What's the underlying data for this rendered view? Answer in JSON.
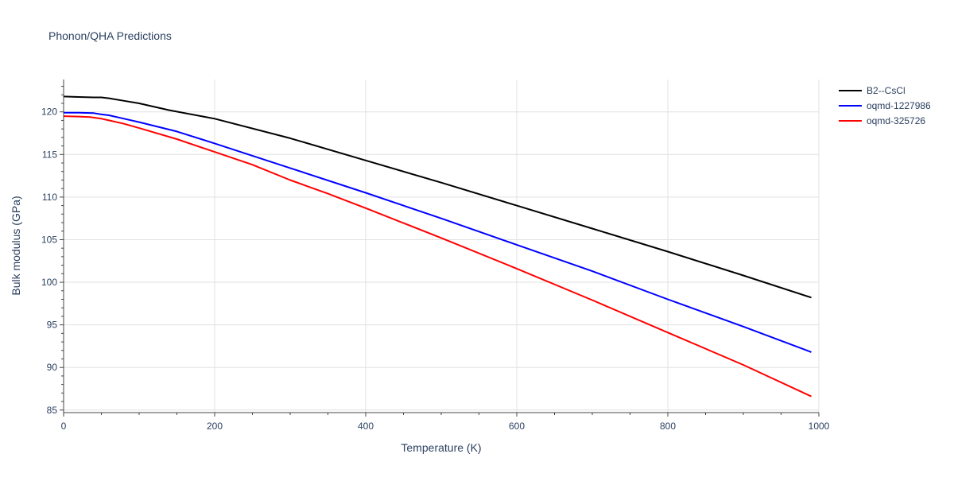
{
  "chart_data": {
    "type": "line",
    "title": "Phonon/QHA Predictions",
    "xlabel": "Temperature (K)",
    "ylabel": "Bulk modulus (GPa)",
    "xlim": [
      0,
      1000
    ],
    "ylim": [
      84.7,
      123.8
    ],
    "x_ticks": [
      0,
      200,
      400,
      600,
      800,
      1000
    ],
    "y_ticks": [
      85,
      90,
      95,
      100,
      105,
      110,
      115,
      120
    ],
    "x_minor_step": 50,
    "y_minor_step": 1,
    "grid": true,
    "legend_position": "top-right",
    "series": [
      {
        "name": "B2--CsCl",
        "color": "#000000",
        "x": [
          0,
          20,
          40,
          50,
          60,
          80,
          100,
          140,
          200,
          300,
          400,
          500,
          600,
          700,
          800,
          900,
          990
        ],
        "y": [
          121.8,
          121.75,
          121.7,
          121.7,
          121.6,
          121.3,
          121.0,
          120.2,
          119.2,
          116.9,
          114.3,
          111.7,
          109.0,
          106.3,
          103.6,
          100.8,
          98.2
        ]
      },
      {
        "name": "oqmd-1227986",
        "color": "#0000ff",
        "x": [
          0,
          20,
          40,
          50,
          60,
          80,
          100,
          150,
          200,
          300,
          400,
          500,
          600,
          700,
          800,
          900,
          990
        ],
        "y": [
          119.9,
          119.9,
          119.85,
          119.7,
          119.6,
          119.2,
          118.8,
          117.7,
          116.3,
          113.4,
          110.5,
          107.5,
          104.4,
          101.3,
          98.0,
          94.8,
          91.8
        ]
      },
      {
        "name": "oqmd-325726",
        "color": "#ff0000",
        "x": [
          0,
          20,
          35,
          50,
          60,
          80,
          100,
          150,
          200,
          250,
          300,
          350,
          400,
          500,
          600,
          700,
          800,
          900,
          990
        ],
        "y": [
          119.5,
          119.45,
          119.4,
          119.2,
          119.0,
          118.6,
          118.1,
          116.8,
          115.3,
          113.8,
          112.0,
          110.4,
          108.7,
          105.2,
          101.6,
          97.9,
          94.1,
          90.3,
          86.6
        ]
      }
    ]
  }
}
